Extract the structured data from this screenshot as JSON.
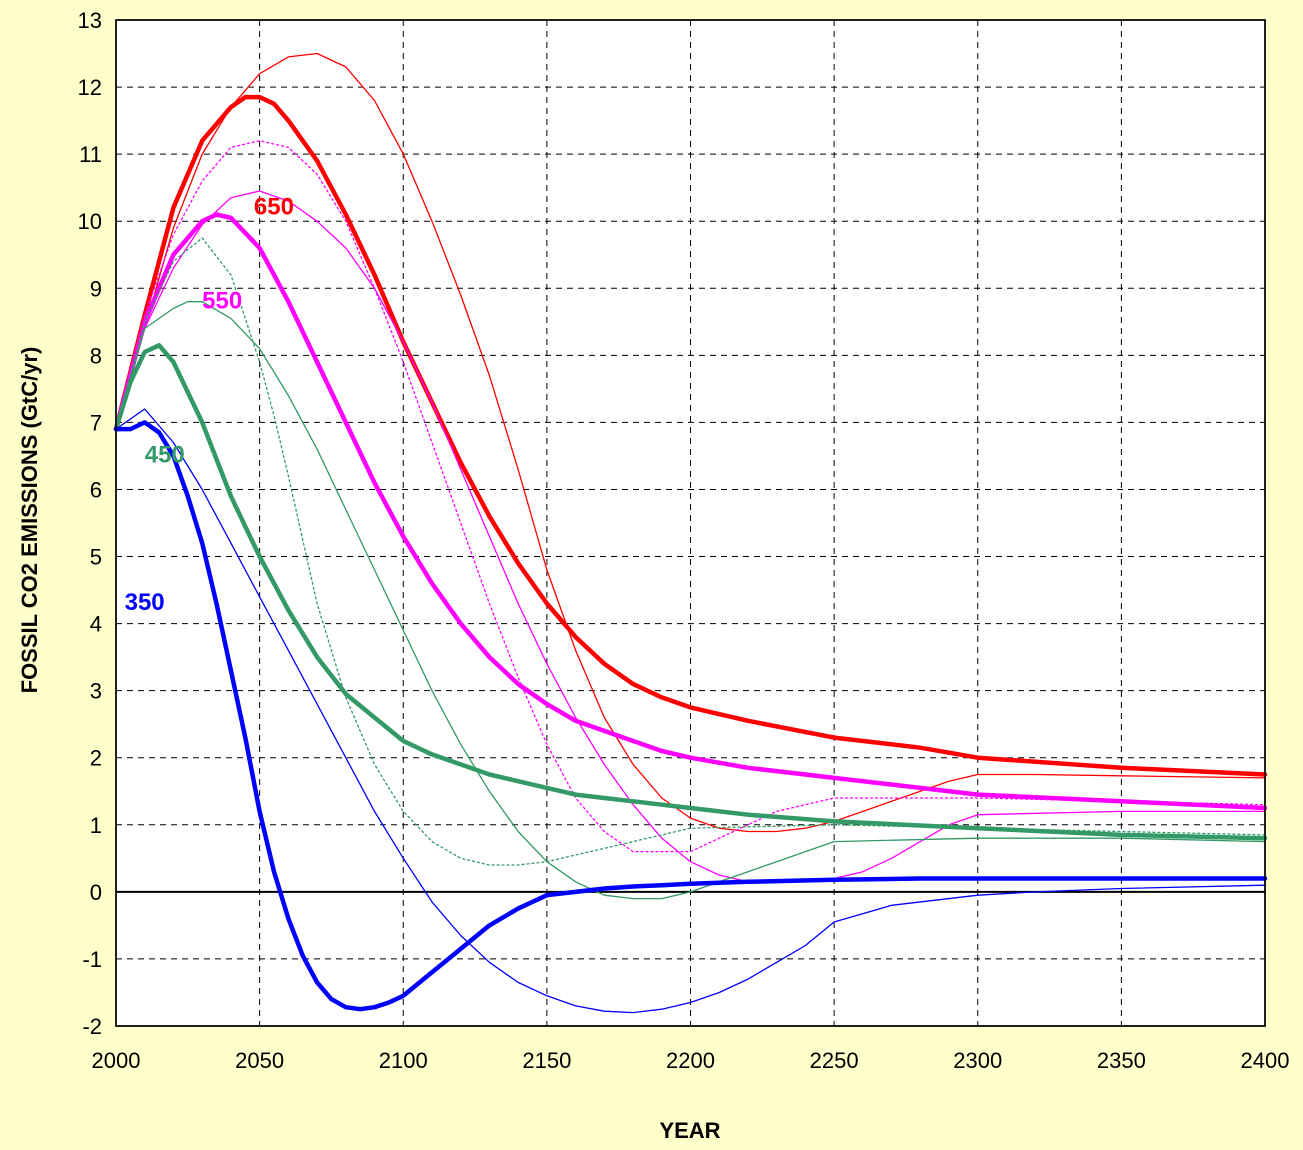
{
  "chart_data": {
    "type": "line",
    "title": "",
    "xlabel": "YEAR",
    "ylabel": "FOSSIL CO2 EMISSIONS  (GtC/yr)",
    "xlim": [
      2000,
      2400
    ],
    "ylim": [
      -2,
      13
    ],
    "xticks": [
      2000,
      2050,
      2100,
      2150,
      2200,
      2250,
      2300,
      2350,
      2400
    ],
    "yticks": [
      -2,
      -1,
      0,
      1,
      2,
      3,
      4,
      5,
      6,
      7,
      8,
      9,
      10,
      11,
      12,
      13
    ],
    "grid": true,
    "zero_line": true,
    "colors": {
      "background": "#FFFFCC",
      "plot_background": "#FFFFFF",
      "red": "#FF0000",
      "magenta": "#FF00FF",
      "green": "#339966",
      "blue": "#0000FF"
    },
    "labels": [
      {
        "text": "650",
        "x": 2048,
        "y": 10.1,
        "color": "#FF0000"
      },
      {
        "text": "550",
        "x": 2030,
        "y": 8.7,
        "color": "#FF00FF"
      },
      {
        "text": "450",
        "x": 2010,
        "y": 6.4,
        "color": "#339966"
      },
      {
        "text": "350",
        "x": 2003,
        "y": 4.2,
        "color": "#0000FF"
      }
    ],
    "series": [
      {
        "color": "#FF0000",
        "width": 1.3,
        "style": "solid",
        "x": [
          2000,
          2010,
          2020,
          2030,
          2040,
          2050,
          2060,
          2070,
          2080,
          2090,
          2100,
          2110,
          2120,
          2130,
          2140,
          2150,
          2160,
          2170,
          2180,
          2190,
          2200,
          2210,
          2220,
          2230,
          2240,
          2250,
          2260,
          2270,
          2280,
          2290,
          2300,
          2320,
          2350,
          2400
        ],
        "y": [
          6.9,
          8.4,
          9.9,
          11.0,
          11.7,
          12.2,
          12.45,
          12.5,
          12.3,
          11.8,
          11.0,
          10.0,
          8.9,
          7.7,
          6.3,
          4.8,
          3.6,
          2.6,
          1.9,
          1.4,
          1.1,
          0.95,
          0.9,
          0.9,
          0.95,
          1.05,
          1.2,
          1.35,
          1.5,
          1.65,
          1.75,
          1.75,
          1.73,
          1.7
        ]
      },
      {
        "color": "#FF0000",
        "width": 4.5,
        "style": "solid",
        "x": [
          2000,
          2010,
          2020,
          2030,
          2040,
          2045,
          2050,
          2055,
          2060,
          2070,
          2080,
          2090,
          2100,
          2110,
          2120,
          2130,
          2140,
          2150,
          2160,
          2170,
          2180,
          2190,
          2200,
          2220,
          2250,
          2280,
          2300,
          2350,
          2400
        ],
        "y": [
          6.9,
          8.6,
          10.2,
          11.2,
          11.7,
          11.85,
          11.85,
          11.75,
          11.5,
          10.9,
          10.1,
          9.2,
          8.2,
          7.3,
          6.4,
          5.6,
          4.9,
          4.3,
          3.8,
          3.4,
          3.1,
          2.9,
          2.75,
          2.55,
          2.3,
          2.15,
          2.0,
          1.85,
          1.75
        ]
      },
      {
        "color": "#FF00FF",
        "width": 1.3,
        "style": "dotted",
        "x": [
          2000,
          2010,
          2020,
          2030,
          2040,
          2050,
          2060,
          2070,
          2080,
          2090,
          2100,
          2110,
          2120,
          2130,
          2140,
          2150,
          2160,
          2170,
          2180,
          2190,
          2200,
          2210,
          2220,
          2230,
          2240,
          2250,
          2300,
          2350,
          2400
        ],
        "y": [
          6.9,
          8.6,
          9.8,
          10.6,
          11.1,
          11.2,
          11.1,
          10.7,
          10.0,
          9.0,
          7.9,
          6.7,
          5.5,
          4.3,
          3.2,
          2.2,
          1.4,
          0.9,
          0.6,
          0.6,
          0.6,
          0.8,
          1.0,
          1.2,
          1.3,
          1.4,
          1.4,
          1.35,
          1.3
        ]
      },
      {
        "color": "#FF00FF",
        "width": 1.3,
        "style": "solid",
        "x": [
          2000,
          2010,
          2020,
          2030,
          2040,
          2050,
          2060,
          2070,
          2080,
          2090,
          2100,
          2110,
          2120,
          2130,
          2140,
          2150,
          2160,
          2170,
          2180,
          2190,
          2200,
          2210,
          2220,
          2230,
          2240,
          2250,
          2260,
          2270,
          2280,
          2290,
          2300,
          2350,
          2400
        ],
        "y": [
          6.9,
          8.4,
          9.3,
          9.95,
          10.35,
          10.45,
          10.3,
          10.0,
          9.6,
          9.0,
          8.2,
          7.3,
          6.3,
          5.3,
          4.3,
          3.4,
          2.6,
          1.9,
          1.3,
          0.8,
          0.45,
          0.25,
          0.15,
          0.15,
          0.15,
          0.2,
          0.3,
          0.5,
          0.75,
          1.0,
          1.15,
          1.2,
          1.2
        ]
      },
      {
        "color": "#FF00FF",
        "width": 4.5,
        "style": "solid",
        "x": [
          2000,
          2010,
          2020,
          2030,
          2035,
          2040,
          2050,
          2060,
          2070,
          2080,
          2090,
          2100,
          2110,
          2120,
          2130,
          2140,
          2150,
          2160,
          2170,
          2180,
          2190,
          2200,
          2220,
          2250,
          2280,
          2300,
          2350,
          2400
        ],
        "y": [
          6.9,
          8.5,
          9.5,
          10.0,
          10.1,
          10.05,
          9.6,
          8.8,
          7.9,
          7.0,
          6.1,
          5.3,
          4.6,
          4.0,
          3.5,
          3.1,
          2.8,
          2.55,
          2.4,
          2.25,
          2.1,
          2.0,
          1.85,
          1.7,
          1.55,
          1.45,
          1.35,
          1.25
        ]
      },
      {
        "color": "#339966",
        "width": 1.3,
        "style": "dotted",
        "x": [
          2000,
          2010,
          2020,
          2030,
          2040,
          2050,
          2055,
          2060,
          2070,
          2080,
          2090,
          2100,
          2110,
          2120,
          2130,
          2140,
          2150,
          2160,
          2170,
          2180,
          2190,
          2200,
          2250,
          2300,
          2350,
          2400
        ],
        "y": [
          6.9,
          8.5,
          9.4,
          9.75,
          9.2,
          7.9,
          7.1,
          6.2,
          4.3,
          2.9,
          1.9,
          1.2,
          0.75,
          0.5,
          0.4,
          0.4,
          0.45,
          0.55,
          0.65,
          0.75,
          0.85,
          0.95,
          1.0,
          0.95,
          0.9,
          0.85
        ]
      },
      {
        "color": "#339966",
        "width": 1.3,
        "style": "solid",
        "x": [
          2000,
          2010,
          2020,
          2025,
          2030,
          2040,
          2050,
          2060,
          2070,
          2080,
          2090,
          2100,
          2110,
          2120,
          2130,
          2140,
          2150,
          2160,
          2170,
          2180,
          2190,
          2200,
          2210,
          2220,
          2230,
          2240,
          2250,
          2300,
          2350,
          2400
        ],
        "y": [
          6.9,
          8.4,
          8.7,
          8.8,
          8.8,
          8.55,
          8.1,
          7.4,
          6.6,
          5.7,
          4.8,
          3.9,
          3.0,
          2.2,
          1.5,
          0.9,
          0.45,
          0.15,
          -0.05,
          -0.1,
          -0.1,
          0.0,
          0.15,
          0.3,
          0.45,
          0.6,
          0.75,
          0.8,
          0.8,
          0.75
        ]
      },
      {
        "color": "#339966",
        "width": 4.5,
        "style": "solid",
        "x": [
          2000,
          2005,
          2010,
          2015,
          2020,
          2030,
          2040,
          2050,
          2060,
          2070,
          2080,
          2090,
          2100,
          2110,
          2120,
          2130,
          2140,
          2150,
          2160,
          2170,
          2180,
          2190,
          2200,
          2220,
          2250,
          2300,
          2350,
          2400
        ],
        "y": [
          6.9,
          7.6,
          8.05,
          8.15,
          7.9,
          7.0,
          5.9,
          5.0,
          4.2,
          3.5,
          2.95,
          2.6,
          2.25,
          2.05,
          1.9,
          1.75,
          1.65,
          1.55,
          1.45,
          1.4,
          1.35,
          1.3,
          1.25,
          1.15,
          1.05,
          0.95,
          0.85,
          0.8
        ]
      },
      {
        "color": "#0000FF",
        "width": 1.3,
        "style": "solid",
        "x": [
          2000,
          2010,
          2020,
          2030,
          2040,
          2050,
          2060,
          2070,
          2080,
          2090,
          2100,
          2110,
          2120,
          2130,
          2140,
          2150,
          2160,
          2170,
          2180,
          2190,
          2200,
          2210,
          2220,
          2230,
          2240,
          2250,
          2270,
          2300,
          2320,
          2350,
          2400
        ],
        "y": [
          6.9,
          7.2,
          6.7,
          6.0,
          5.2,
          4.4,
          3.6,
          2.8,
          2.0,
          1.2,
          0.5,
          -0.15,
          -0.65,
          -1.05,
          -1.35,
          -1.55,
          -1.7,
          -1.78,
          -1.8,
          -1.75,
          -1.65,
          -1.5,
          -1.3,
          -1.05,
          -0.8,
          -0.45,
          -0.2,
          -0.05,
          0.0,
          0.05,
          0.1
        ]
      },
      {
        "color": "#0000FF",
        "width": 4.5,
        "style": "solid",
        "x": [
          2000,
          2005,
          2010,
          2015,
          2020,
          2025,
          2030,
          2035,
          2040,
          2045,
          2050,
          2055,
          2060,
          2065,
          2070,
          2075,
          2080,
          2085,
          2090,
          2095,
          2100,
          2110,
          2120,
          2130,
          2140,
          2150,
          2160,
          2170,
          2180,
          2190,
          2200,
          2220,
          2250,
          2280,
          2300,
          2350,
          2400
        ],
        "y": [
          6.9,
          6.9,
          7.0,
          6.85,
          6.5,
          5.9,
          5.2,
          4.3,
          3.3,
          2.3,
          1.2,
          0.3,
          -0.4,
          -0.95,
          -1.35,
          -1.6,
          -1.72,
          -1.75,
          -1.72,
          -1.65,
          -1.55,
          -1.2,
          -0.85,
          -0.5,
          -0.25,
          -0.05,
          0.0,
          0.05,
          0.08,
          0.1,
          0.12,
          0.15,
          0.18,
          0.2,
          0.2,
          0.2,
          0.2
        ]
      }
    ]
  }
}
